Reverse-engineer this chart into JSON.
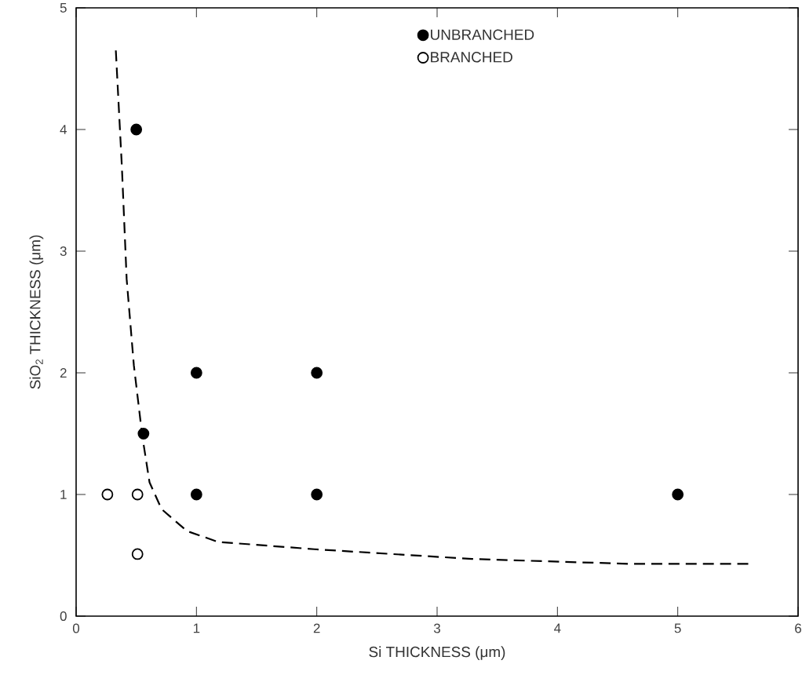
{
  "chart_data": {
    "type": "scatter",
    "xlabel": "Si THICKNESS (μm)",
    "ylabel": "SiO$_{2}$ THICKNESS (μm)",
    "xlim": [
      0,
      6
    ],
    "ylim": [
      0,
      5
    ],
    "xticks": [
      0,
      1,
      2,
      3,
      4,
      5,
      6
    ],
    "yticks": [
      0,
      1,
      2,
      3,
      4,
      5
    ],
    "legend": "top right",
    "grid": false,
    "series": [
      {
        "name": "UNBRANCHED",
        "color": "#000000",
        "marker": "circle",
        "x": [
          0.5,
          0.56,
          1,
          2,
          1,
          2,
          5
        ],
        "values": [
          4,
          1.5,
          2,
          2,
          1,
          1,
          1
        ]
      },
      {
        "name": "BRANCHED",
        "color": "#ffffff",
        "marker": "circle",
        "x": [
          0.26,
          0.51,
          0.51
        ],
        "values": [
          1,
          1,
          0.51
        ]
      },
      {
        "type": "line",
        "color": "#000000",
        "line_style": "dashed",
        "marker": "none",
        "x": [
          0.33,
          0.38,
          0.42,
          0.48,
          0.55,
          0.61,
          0.71,
          0.92,
          1.18,
          1.98,
          3.29,
          4.59,
          5.61
        ],
        "values": [
          4.65,
          3.7,
          2.77,
          2.06,
          1.48,
          1.1,
          0.88,
          0.7,
          0.61,
          0.55,
          0.47,
          0.43,
          0.43
        ]
      }
    ]
  }
}
